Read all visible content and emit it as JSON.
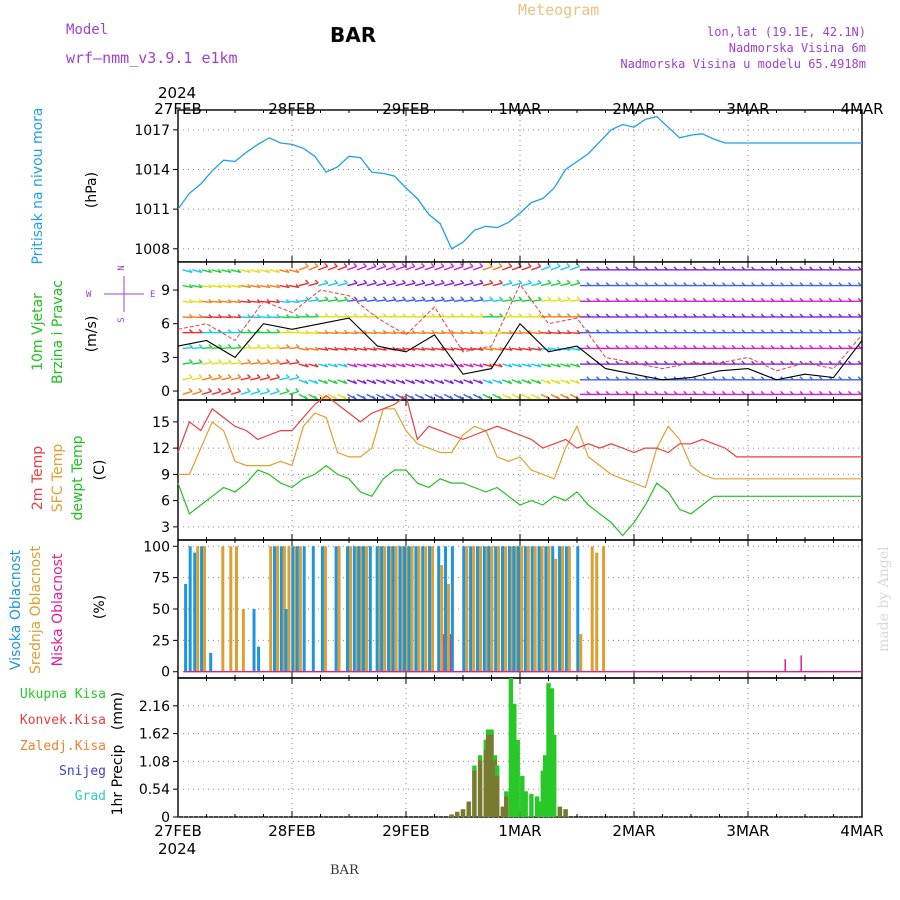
{
  "header": {
    "model_label": "Model",
    "model_name": "wrf–nmm_v3.9.1  e1km",
    "station": "BAR",
    "product": "Meteogram",
    "location": "lon,lat (19.1E, 42.1N)",
    "elevation": "Nadmorska Visina 6m",
    "model_elevation": "Nadmorska Visina u modelu 65.4918m"
  },
  "footer": {
    "station": "BAR"
  },
  "watermark": "made by Angel",
  "time_axis": {
    "year": "2024",
    "ticks": [
      "27FEB",
      "28FEB",
      "29FEB",
      "1MAR",
      "2MAR",
      "3MAR",
      "4MAR"
    ]
  },
  "colors": {
    "pressure": "#1ea0e8",
    "temp2m": "#e84040",
    "sfc": "#e0a030",
    "dewpt": "#20c020",
    "high_cloud": "#1e96dc",
    "mid_cloud": "#dca032",
    "low_cloud": "#dc1e96",
    "total_rain": "#28c828",
    "conv_rain": "#e84040",
    "frz_rain": "#f08030",
    "snow": "#4040d0",
    "hail": "#30c8c8",
    "wind_title": "#20c020",
    "compass": "#a040d0"
  },
  "chart_data": [
    {
      "type": "line",
      "panel": "pressure",
      "ylabel_lines": [
        "Pritisak na nivou mora"
      ],
      "unit": "(hPa)",
      "yticks": [
        1008,
        1011,
        1014,
        1017
      ],
      "ylim": [
        1007.0,
        1018.5
      ],
      "grid": true,
      "x_days": [
        0,
        0.1,
        0.2,
        0.3,
        0.4,
        0.5,
        0.6,
        0.7,
        0.8,
        0.9,
        1.0,
        1.1,
        1.2,
        1.3,
        1.4,
        1.5,
        1.6,
        1.7,
        1.8,
        1.9,
        2.0,
        2.1,
        2.2,
        2.3,
        2.4,
        2.5,
        2.6,
        2.7,
        2.8,
        2.9,
        3.0,
        3.1,
        3.2,
        3.3,
        3.4,
        3.5,
        3.6,
        3.7,
        3.8,
        3.9,
        4.0,
        4.1,
        4.2,
        4.3,
        4.4,
        4.5,
        4.6,
        4.7,
        4.8,
        4.9,
        5.0,
        5.1,
        5.2,
        5.3,
        5.4,
        5.5,
        5.6,
        5.7,
        5.8,
        5.9,
        6.0
      ],
      "series": [
        {
          "values": [
            1011.0,
            1012.2,
            1012.9,
            1013.9,
            1014.7,
            1014.6,
            1015.3,
            1015.9,
            1016.4,
            1016.0,
            1015.9,
            1015.6,
            1015.0,
            1013.8,
            1014.2,
            1015.0,
            1014.9,
            1013.8,
            1013.7,
            1013.5,
            1012.6,
            1011.8,
            1010.6,
            1009.9,
            1008.0,
            1008.5,
            1009.4,
            1009.7,
            1009.6,
            1010.0,
            1010.7,
            1011.5,
            1011.8,
            1012.6,
            1014.0,
            1014.6,
            1015.2,
            1016.1,
            1017.0,
            1017.4,
            1017.2,
            1017.8,
            1018.0,
            1017.2,
            1016.4,
            1016.6,
            1016.7,
            1016.3,
            1016.0,
            1016.0,
            1016.0,
            1016.0,
            1016.0,
            1016.0,
            1016.0,
            1016.0,
            1016.0,
            1016.0,
            1016.0,
            1016.0,
            1016.0
          ]
        }
      ]
    },
    {
      "type": "barbs",
      "panel": "wind",
      "ylabel_lines": [
        "10m Vjetar",
        "Brzina i Pravac"
      ],
      "unit": "(m/s)",
      "compass": {
        "n": "N",
        "s": "S",
        "e": "E",
        "w": "W"
      },
      "yticks": [
        0,
        3,
        6,
        9
      ],
      "ylim": [
        -0.8,
        11.5
      ],
      "x_days": [
        0,
        0.25,
        0.5,
        0.75,
        1.0,
        1.25,
        1.5,
        1.75,
        2.0,
        2.25,
        2.5,
        2.75,
        3.0,
        3.25,
        3.5,
        3.75,
        4.0,
        4.25,
        4.5,
        4.75,
        5.0,
        5.25,
        5.5,
        5.75,
        6.0
      ],
      "speed": [
        4.0,
        4.5,
        3.0,
        6.0,
        5.5,
        6.0,
        6.5,
        4.0,
        3.5,
        5.0,
        1.5,
        2.0,
        6.0,
        3.5,
        4.0,
        2.0,
        1.5,
        1.0,
        1.2,
        1.8,
        2.0,
        1.0,
        1.5,
        1.2,
        4.5
      ],
      "gust": [
        5.5,
        6.0,
        4.5,
        8.0,
        7.0,
        9.0,
        8.5,
        6.5,
        5.0,
        7.5,
        3.5,
        4.0,
        9.5,
        6.0,
        6.5,
        3.0,
        2.5,
        2.0,
        2.5,
        2.5,
        3.0,
        1.8,
        2.5,
        2.0,
        5.0
      ]
    },
    {
      "type": "line",
      "panel": "temperature",
      "ylabel_lines": [
        "2m Temp",
        "SFC Temp",
        "dewpt Temp"
      ],
      "unit": "(C)",
      "yticks": [
        3,
        6,
        9,
        12,
        15
      ],
      "ylim": [
        1.5,
        17.5
      ],
      "grid": true,
      "x_days": [
        0,
        0.1,
        0.2,
        0.3,
        0.4,
        0.5,
        0.6,
        0.7,
        0.8,
        0.9,
        1.0,
        1.1,
        1.2,
        1.3,
        1.4,
        1.5,
        1.6,
        1.7,
        1.8,
        1.9,
        2.0,
        2.1,
        2.2,
        2.3,
        2.4,
        2.5,
        2.6,
        2.7,
        2.8,
        2.9,
        3.0,
        3.1,
        3.2,
        3.3,
        3.4,
        3.5,
        3.6,
        3.7,
        3.8,
        3.9,
        4.0,
        4.1,
        4.2,
        4.3,
        4.4,
        4.5,
        4.6,
        4.7,
        4.8,
        4.9,
        5.0,
        5.1,
        5.2,
        5.3,
        5.4,
        5.5,
        5.6,
        5.7,
        5.8,
        5.9,
        6.0
      ],
      "series": [
        {
          "name": "2m Temp",
          "values": [
            11.5,
            15.0,
            14.0,
            16.5,
            15.5,
            14.5,
            14.0,
            13.0,
            13.5,
            14.0,
            14.0,
            15.5,
            17.0,
            18.0,
            17.0,
            16.0,
            15.0,
            16.0,
            16.5,
            17.0,
            18.0,
            13.0,
            14.5,
            14.0,
            13.5,
            13.0,
            13.5,
            14.0,
            14.5,
            14.0,
            13.5,
            13.0,
            12.0,
            12.5,
            13.0,
            12.0,
            12.5,
            12.0,
            12.5,
            12.0,
            11.5,
            12.0,
            12.0,
            11.5,
            12.5,
            12.5,
            13.0,
            12.5,
            12.0,
            11.0,
            11.0,
            11.0,
            11.0,
            11.0,
            11.0,
            11.0,
            11.0,
            11.0,
            11.0,
            11.0,
            11.0
          ]
        },
        {
          "name": "SFC Temp",
          "values": [
            9.0,
            9.0,
            12.0,
            15.0,
            14.0,
            10.5,
            10.0,
            10.0,
            10.0,
            10.5,
            10.0,
            14.5,
            16.0,
            15.5,
            11.5,
            11.0,
            11.0,
            12.0,
            16.5,
            16.5,
            14.0,
            12.5,
            12.0,
            11.5,
            11.5,
            13.5,
            14.5,
            14.0,
            11.0,
            10.5,
            11.0,
            9.5,
            9.0,
            8.5,
            12.0,
            14.5,
            11.0,
            10.0,
            9.0,
            8.5,
            8.0,
            7.5,
            12.0,
            14.5,
            13.0,
            10.0,
            9.0,
            8.5,
            8.5,
            8.5,
            8.5,
            8.5,
            8.5,
            8.5,
            8.5,
            8.5,
            8.5,
            8.5,
            8.5,
            8.5,
            8.5
          ]
        },
        {
          "name": "dewpt Temp",
          "values": [
            8.0,
            4.5,
            5.5,
            6.5,
            7.5,
            7.0,
            8.0,
            9.5,
            9.0,
            8.0,
            7.5,
            8.5,
            9.0,
            10.0,
            9.0,
            8.5,
            7.0,
            6.5,
            8.5,
            9.5,
            9.5,
            8.0,
            7.5,
            8.5,
            8.0,
            8.0,
            7.5,
            7.0,
            7.5,
            6.5,
            5.5,
            6.0,
            5.5,
            6.5,
            6.0,
            7.0,
            5.5,
            4.5,
            3.5,
            2.0,
            3.5,
            5.5,
            8.0,
            7.0,
            5.0,
            4.5,
            5.5,
            6.5,
            6.5,
            6.5,
            6.5,
            6.5,
            6.5,
            6.5,
            6.5,
            6.5,
            6.5,
            6.5,
            6.5,
            6.5,
            6.5
          ]
        }
      ]
    },
    {
      "type": "bar",
      "panel": "cloud",
      "ylabel_lines": [
        "Visoka Oblacnost",
        "Srednja Oblacnost",
        "Niska Oblacnost"
      ],
      "unit": "(%)",
      "yticks": [
        0,
        25,
        50,
        75,
        100
      ],
      "ylim": [
        -5,
        105
      ],
      "grid": true,
      "x_days": [
        0.08,
        0.12,
        0.16,
        0.22,
        0.3,
        0.38,
        0.45,
        0.5,
        0.56,
        0.68,
        0.72,
        0.8,
        0.86,
        0.92,
        0.96,
        1.02,
        1.06,
        1.12,
        1.2,
        1.28,
        1.34,
        1.4,
        1.5,
        1.56,
        1.6,
        1.64,
        1.7,
        1.76,
        1.8,
        1.86,
        1.9,
        1.96,
        2.0,
        2.04,
        2.1,
        2.16,
        2.22,
        2.3,
        2.36,
        2.42,
        2.52,
        2.58,
        2.64,
        2.7,
        2.74,
        2.8,
        2.86,
        2.92,
        2.96,
        3.0,
        3.06,
        3.12,
        3.18,
        3.24,
        3.3,
        3.36,
        3.42,
        3.52,
        3.62,
        3.66,
        3.72
      ],
      "series": [
        {
          "name": "Visoka Oblacnost",
          "values": [
            70,
            100,
            95,
            100,
            15,
            0,
            0,
            0,
            0,
            50,
            20,
            0,
            100,
            100,
            50,
            100,
            100,
            100,
            100,
            100,
            0,
            100,
            100,
            100,
            100,
            100,
            100,
            100,
            100,
            100,
            100,
            100,
            100,
            100,
            100,
            100,
            100,
            100,
            100,
            100,
            100,
            100,
            100,
            100,
            100,
            100,
            100,
            100,
            100,
            100,
            100,
            100,
            100,
            100,
            100,
            100,
            100,
            100,
            0,
            0,
            0
          ]
        },
        {
          "name": "Srednja Oblacnost",
          "values": [
            0,
            0,
            100,
            100,
            0,
            100,
            100,
            100,
            50,
            0,
            0,
            100,
            100,
            100,
            100,
            100,
            100,
            0,
            0,
            100,
            0,
            100,
            100,
            100,
            100,
            100,
            0,
            100,
            100,
            100,
            100,
            100,
            100,
            100,
            100,
            100,
            100,
            85,
            70,
            0,
            100,
            100,
            100,
            100,
            100,
            100,
            100,
            100,
            100,
            100,
            100,
            100,
            100,
            100,
            90,
            100,
            100,
            30,
            100,
            95,
            100
          ]
        },
        {
          "name": "Niska Oblacnost",
          "values": [
            0,
            0,
            0,
            0,
            0,
            0,
            0,
            0,
            0,
            0,
            0,
            0,
            0,
            0,
            0,
            0,
            0,
            0,
            0,
            0,
            0,
            0,
            0,
            0,
            0,
            0,
            0,
            0,
            0,
            0,
            0,
            0,
            0,
            0,
            0,
            0,
            0,
            30,
            30,
            0,
            0,
            0,
            0,
            0,
            0,
            0,
            0,
            0,
            0,
            0,
            0,
            0,
            0,
            0,
            0,
            0,
            0,
            0,
            0,
            0,
            0
          ]
        }
      ],
      "extra_low": {
        "x_days": [
          5.32,
          5.46
        ],
        "values": [
          10,
          13
        ]
      }
    },
    {
      "type": "bar",
      "panel": "precip",
      "ylabel_lines": [
        "1hr Precip"
      ],
      "unit": "(mm)",
      "legend": [
        "Ukupna Kisa",
        "Konvek.Kisa",
        "Zaledj.Kisa",
        "Snijeg",
        "Grad"
      ],
      "yticks": [
        0,
        0.54,
        1.08,
        1.62,
        2.16
      ],
      "ylim": [
        0,
        2.7
      ],
      "grid": true,
      "x_days": [
        2.4,
        2.45,
        2.5,
        2.55,
        2.6,
        2.65,
        2.7,
        2.72,
        2.75,
        2.78,
        2.8,
        2.85,
        2.88,
        2.92,
        2.95,
        2.98,
        3.02,
        3.05,
        3.1,
        3.15,
        3.18,
        3.2,
        3.22,
        3.25,
        3.28,
        3.3,
        3.35,
        3.4
      ],
      "series": [
        {
          "name": "Ukupna Kisa",
          "values": [
            0.05,
            0.1,
            0.15,
            0.3,
            1.0,
            1.2,
            1.5,
            1.7,
            1.7,
            1.2,
            1.0,
            0.2,
            0.5,
            2.7,
            2.2,
            1.5,
            0.8,
            0.5,
            0.45,
            0.4,
            0.3,
            0.9,
            1.2,
            2.6,
            2.5,
            1.6,
            0.2,
            0.15
          ]
        },
        {
          "name": "Konvek.Kisa",
          "values": [
            0.05,
            0.1,
            0.15,
            0.3,
            0.9,
            1.1,
            1.3,
            1.6,
            1.6,
            1.1,
            0.8,
            0.2,
            0.4,
            0,
            0,
            0,
            0,
            0,
            0,
            0,
            0,
            0,
            0,
            0,
            0,
            0,
            0.2,
            0.15
          ]
        }
      ]
    }
  ]
}
